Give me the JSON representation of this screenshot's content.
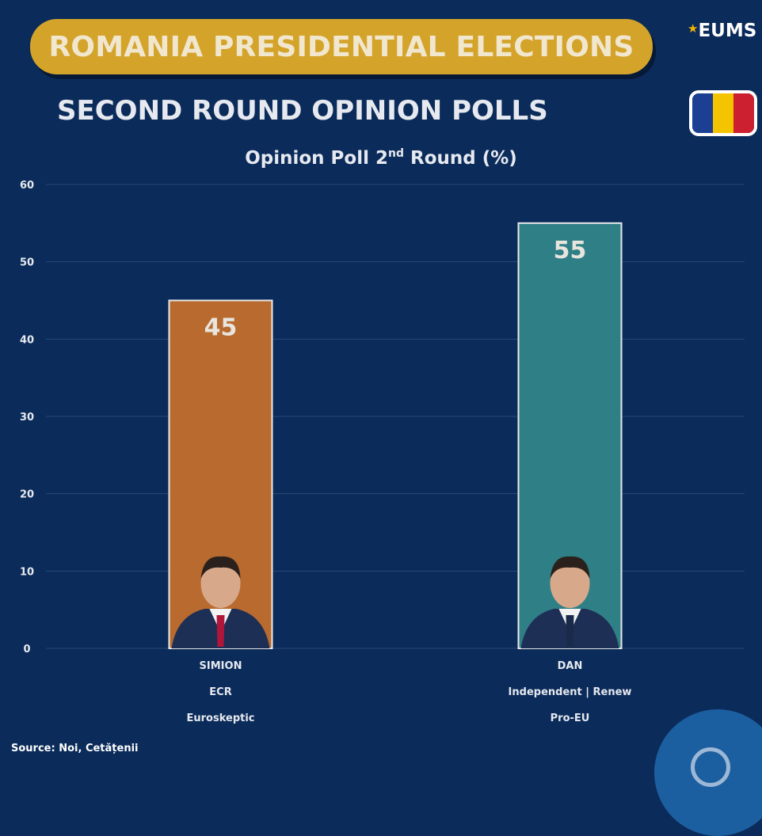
{
  "header": {
    "banner": "ROMANIA PRESIDENTIAL ELECTIONS",
    "subtitle": "SECOND ROUND OPINION POLLS",
    "logo": "EUMS",
    "logo_star_icon": "star-icon"
  },
  "flag": {
    "colors": [
      "#1c3f94",
      "#f5c400",
      "#cc1f2f"
    ]
  },
  "chart_data": {
    "type": "bar",
    "title_main": "Opinion Poll 2",
    "title_sup": "nd",
    "title_end": " Round (%)",
    "ylim": [
      0,
      60
    ],
    "yticks": [
      0,
      10,
      20,
      30,
      40,
      50,
      60
    ],
    "grid": true,
    "categories": [
      {
        "lines": [
          "SIMION",
          "ECR",
          "Euroskeptic"
        ]
      },
      {
        "lines": [
          "DAN",
          "Independent | Renew",
          "Pro-EU"
        ]
      }
    ],
    "values": [
      45,
      55
    ],
    "colors": [
      "#b86a2f",
      "#2f7f86"
    ]
  },
  "footer": {
    "source": "Source: Noi, Cetățenii"
  }
}
